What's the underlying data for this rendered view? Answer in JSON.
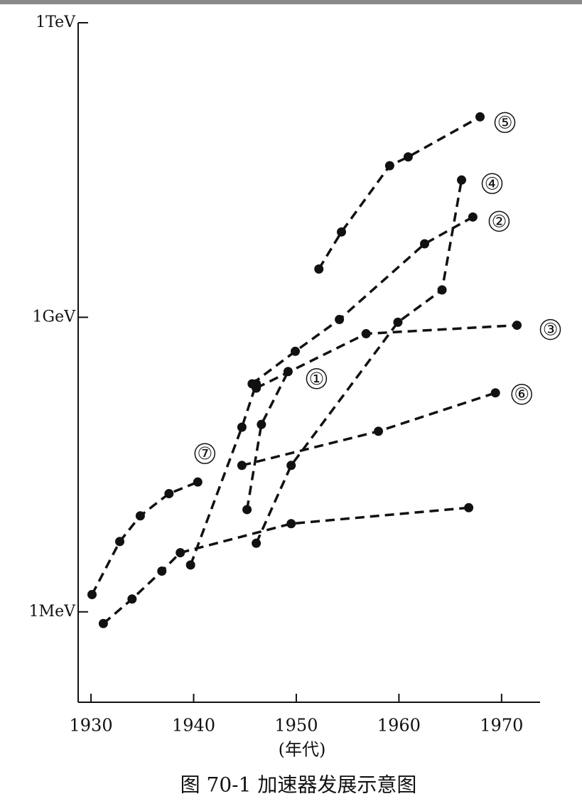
{
  "chart_data": {
    "type": "line",
    "log_y": true,
    "title": "图 70-1 加速器发展示意图",
    "x_label": "(年代)",
    "xlim": [
      1928.75,
      1973.75
    ],
    "xticks": [
      1930,
      1940,
      1950,
      1960,
      1970
    ],
    "ylim": [
      120000,
      1000000000000
    ],
    "yticks": [
      {
        "value": 1000000,
        "label": "1MeV"
      },
      {
        "value": 1000000000,
        "label": "1GeV"
      },
      {
        "value": 1000000000000,
        "label": "1TeV"
      }
    ],
    "color": "#111111",
    "series": [
      {
        "name": "①",
        "x": [
          1945.2,
          1946.6,
          1949.2
        ],
        "values": [
          11000000,
          81000000,
          280000000
        ]
      },
      {
        "name": "②",
        "x": [
          1945.7,
          1949.9,
          1954.2,
          1962.5,
          1967.2
        ],
        "values": [
          210000000,
          450000000,
          950000000,
          5600000000,
          10500000000
        ]
      },
      {
        "name": "③",
        "x": [
          1946.1,
          1956.8,
          1971.5
        ],
        "values": [
          190000000,
          680000000,
          830000000
        ]
      },
      {
        "name": "④",
        "x": [
          1946.1,
          1949.5,
          1959.9,
          1964.2,
          1966.1
        ],
        "values": [
          5000000,
          31000000,
          890000000,
          1900000000,
          25000000000
        ]
      },
      {
        "name": "⑤",
        "x": [
          1952.2,
          1954.4,
          1959.1,
          1960.9,
          1967.9
        ],
        "values": [
          3100000000,
          7400000000,
          35000000000,
          43000000000,
          110000000000
        ]
      },
      {
        "name": "⑥",
        "x": [
          1944.7,
          1958.0,
          1969.4
        ],
        "values": [
          31000000,
          69000000,
          170000000
        ]
      },
      {
        "name": "⑦",
        "x": [
          1930.1,
          1932.8,
          1934.8,
          1937.6,
          1940.4
        ],
        "values": [
          1500000,
          5200000,
          9500000,
          16000000,
          21000000
        ]
      },
      {
        "x": [
          1931.2,
          1934.0,
          1936.9,
          1938.7,
          1949.5,
          1966.8
        ],
        "values": [
          760000,
          1350000,
          2600000,
          4000000,
          7900000,
          11500000
        ]
      },
      {
        "x": [
          1939.7,
          1944.7,
          1946.1
        ],
        "values": [
          3000000,
          76000000,
          210000000
        ]
      }
    ]
  }
}
